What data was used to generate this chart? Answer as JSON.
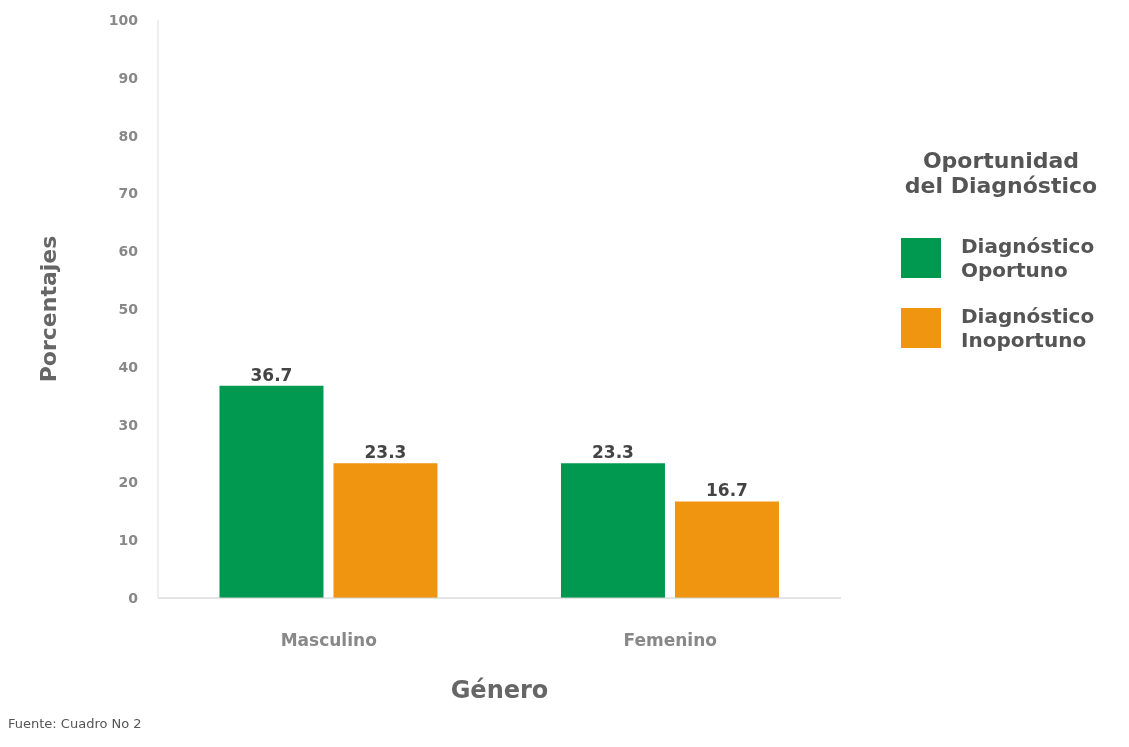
{
  "chart_data": {
    "type": "bar",
    "xlabel": "Género",
    "ylabel": "Porcentajes",
    "legend_title": "Oportunidad del Diagnóstico",
    "categories": [
      "Masculino",
      "Femenino"
    ],
    "series": [
      {
        "name": "Diagnóstico Oportuno",
        "color": "#00994f",
        "values": [
          36.7,
          23.3
        ]
      },
      {
        "name": "Diagnóstico Inoportuno",
        "color": "#f0950f",
        "values": [
          23.3,
          16.7
        ]
      }
    ],
    "ylim": [
      0,
      100
    ],
    "yticks": [
      0,
      10,
      20,
      30,
      40,
      50,
      60,
      70,
      80,
      90,
      100
    ],
    "grid": false,
    "legend": "right",
    "data_labels": true,
    "annotations": [
      "Fuente: Cuadro No 2"
    ]
  }
}
